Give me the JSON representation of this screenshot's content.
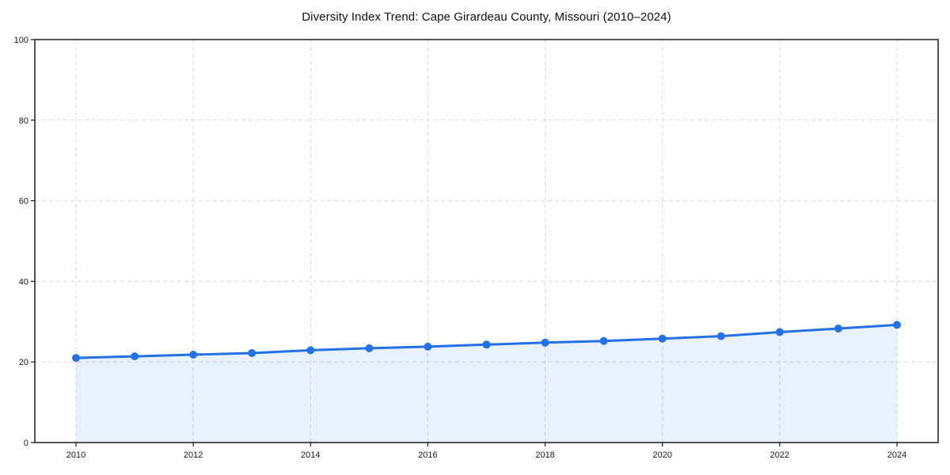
{
  "chart_data": {
    "type": "area",
    "title": "Diversity Index Trend: Cape Girardeau County, Missouri (2010–2024)",
    "xlabel": "",
    "ylabel": "",
    "x": [
      2010,
      2011,
      2012,
      2013,
      2014,
      2015,
      2016,
      2017,
      2018,
      2019,
      2020,
      2021,
      2022,
      2023,
      2024
    ],
    "series": [
      {
        "name": "Diversity Index",
        "values": [
          21.0,
          21.4,
          21.8,
          22.2,
          22.9,
          23.4,
          23.8,
          24.3,
          24.8,
          25.2,
          25.8,
          26.4,
          27.4,
          28.3,
          29.2
        ]
      }
    ],
    "xlim": [
      2010,
      2024
    ],
    "ylim": [
      0,
      100
    ],
    "xticks": [
      2010,
      2012,
      2014,
      2016,
      2018,
      2020,
      2022,
      2024
    ],
    "yticks": [
      0,
      20,
      40,
      60,
      80,
      100
    ],
    "grid": true,
    "legend_position": "none",
    "line_color": "#2271e8",
    "fill_color": "rgba(34, 113, 232, 0.10)",
    "grid_color": "#dadada",
    "axis_color": "#1a1a1a",
    "background_color": "#ffffff",
    "marker_radius": 5
  }
}
